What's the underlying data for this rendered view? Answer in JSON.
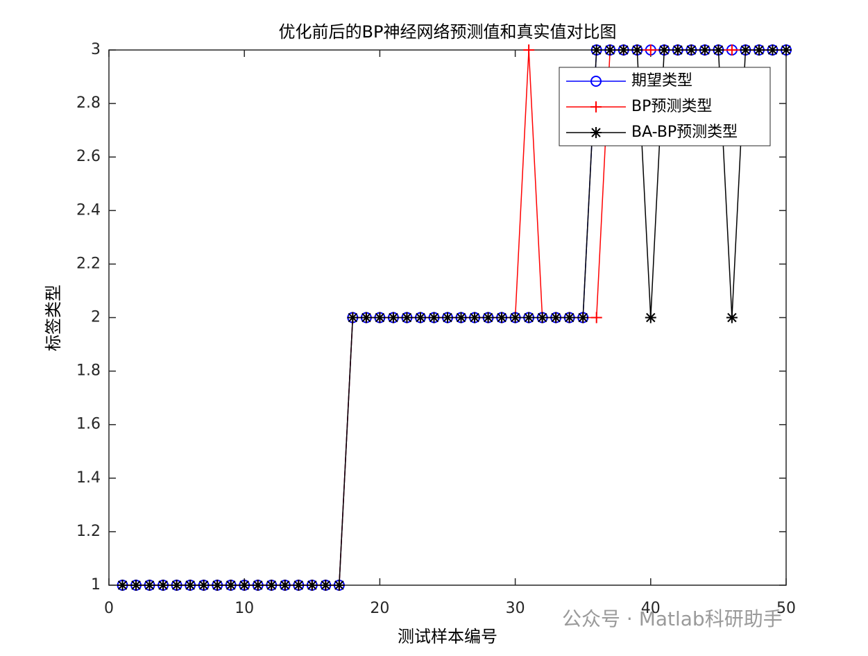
{
  "chart_data": {
    "type": "line",
    "title": "优化前后的BP神经网络预测值和真实值对比图",
    "xlabel": "测试样本编号",
    "ylabel": "标签类型",
    "x": [
      1,
      2,
      3,
      4,
      5,
      6,
      7,
      8,
      9,
      10,
      11,
      12,
      13,
      14,
      15,
      16,
      17,
      18,
      19,
      20,
      21,
      22,
      23,
      24,
      25,
      26,
      27,
      28,
      29,
      30,
      31,
      32,
      33,
      34,
      35,
      36,
      37,
      38,
      39,
      40,
      41,
      42,
      43,
      44,
      45,
      46,
      47,
      48,
      49,
      50
    ],
    "series": [
      {
        "name": "期望类型",
        "color": "#0000ff",
        "marker": "circle",
        "values": [
          1,
          1,
          1,
          1,
          1,
          1,
          1,
          1,
          1,
          1,
          1,
          1,
          1,
          1,
          1,
          1,
          1,
          2,
          2,
          2,
          2,
          2,
          2,
          2,
          2,
          2,
          2,
          2,
          2,
          2,
          2,
          2,
          2,
          2,
          2,
          3,
          3,
          3,
          3,
          3,
          3,
          3,
          3,
          3,
          3,
          3,
          3,
          3,
          3,
          3
        ]
      },
      {
        "name": "BP预测类型",
        "color": "#ff0000",
        "marker": "plus",
        "values": [
          1,
          1,
          1,
          1,
          1,
          1,
          1,
          1,
          1,
          1,
          1,
          1,
          1,
          1,
          1,
          1,
          1,
          2,
          2,
          2,
          2,
          2,
          2,
          2,
          2,
          2,
          2,
          2,
          2,
          2,
          3,
          2,
          2,
          2,
          2,
          2,
          3,
          3,
          3,
          3,
          3,
          3,
          3,
          3,
          3,
          3,
          3,
          3,
          3,
          3
        ]
      },
      {
        "name": "BA-BP预测类型",
        "color": "#000000",
        "marker": "asterisk",
        "values": [
          1,
          1,
          1,
          1,
          1,
          1,
          1,
          1,
          1,
          1,
          1,
          1,
          1,
          1,
          1,
          1,
          1,
          2,
          2,
          2,
          2,
          2,
          2,
          2,
          2,
          2,
          2,
          2,
          2,
          2,
          2,
          2,
          2,
          2,
          2,
          3,
          3,
          3,
          3,
          2,
          3,
          3,
          3,
          3,
          3,
          2,
          3,
          3,
          3,
          3
        ]
      }
    ],
    "xlim": [
      0,
      50
    ],
    "xticks": [
      0,
      10,
      20,
      30,
      40,
      50
    ],
    "ylim": [
      1,
      3
    ],
    "yticks": [
      1,
      1.2,
      1.4,
      1.6,
      1.8,
      2,
      2.2,
      2.4,
      2.6,
      2.8,
      3
    ],
    "grid": false,
    "legend": "northeast",
    "watermark": "公众号 · Matlab科研助手"
  }
}
